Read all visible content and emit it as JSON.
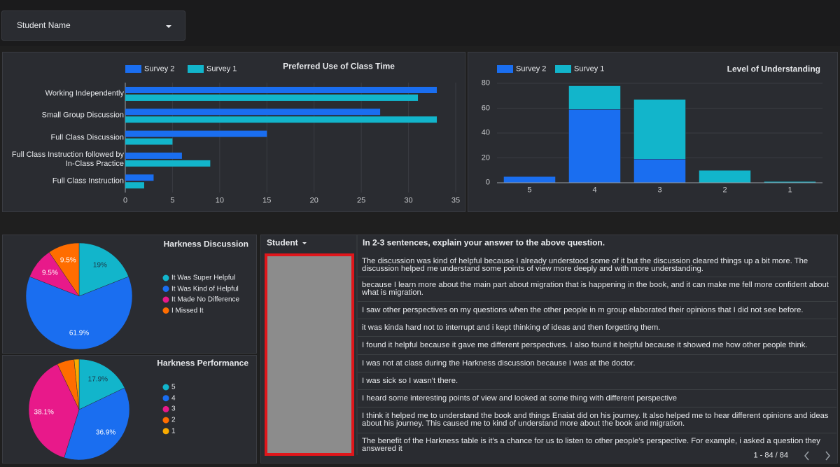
{
  "filter": {
    "label": "Student Name"
  },
  "class_time": {
    "type": "bar",
    "orientation": "horizontal",
    "title": "Preferred Use of Class Time",
    "categories": [
      "Working Independently",
      "Small Group Discussion",
      "Full Class Discussion",
      "Full Class Instruction followed by In-Class Practice",
      "Full Class Instruction"
    ],
    "series": [
      {
        "name": "Survey 2",
        "color": "#1a6ef0",
        "values": [
          33,
          27,
          15,
          6,
          3
        ]
      },
      {
        "name": "Survey 1",
        "color": "#12b5cb",
        "values": [
          31,
          33,
          5,
          9,
          2
        ]
      }
    ],
    "xlim": [
      0,
      35
    ],
    "xticks": [
      0,
      5,
      10,
      15,
      20,
      25,
      30,
      35
    ],
    "grid": true
  },
  "understanding": {
    "type": "bar",
    "stacked": true,
    "title": "Level of Understanding",
    "categories": [
      "5",
      "4",
      "3",
      "2",
      "1"
    ],
    "series": [
      {
        "name": "Survey 2",
        "color": "#1a6ef0",
        "values": [
          5,
          59,
          19,
          0,
          0
        ]
      },
      {
        "name": "Survey 1",
        "color": "#12b5cb",
        "values": [
          0,
          19,
          48,
          10,
          1
        ]
      }
    ],
    "ylim": [
      0,
      80
    ],
    "yticks": [
      0,
      20,
      40,
      60,
      80
    ],
    "grid": true
  },
  "harkness_discussion": {
    "type": "pie",
    "title": "Harkness Discussion",
    "categories": [
      "It Was Super Helpful",
      "It Was Kind of Helpful",
      "It Made No Difference",
      "I Missed It"
    ],
    "values": [
      19,
      61.9,
      9.5,
      9.5
    ],
    "value_labels": [
      "19%",
      "61.9%",
      "9.5%",
      "9.5%"
    ],
    "colors": [
      "#12b5cb",
      "#1a6ef0",
      "#e8198a",
      "#ff6d00"
    ]
  },
  "harkness_performance": {
    "type": "pie",
    "title": "Harkness Performance",
    "categories": [
      "5",
      "4",
      "3",
      "2",
      "1"
    ],
    "values": [
      17.9,
      36.9,
      38.1,
      5.5,
      1.6
    ],
    "value_labels": [
      "17.9%",
      "36.9%",
      "38.1%",
      null,
      null
    ],
    "colors": [
      "#12b5cb",
      "#1a6ef0",
      "#e8198a",
      "#ff6d00",
      "#f9ab00"
    ]
  },
  "table": {
    "columns": [
      "Student",
      "In 2-3 sentences, explain your answer to the above question."
    ],
    "rows": [
      "The discussion was kind of helpful because I already understood some of it but the discussion cleared things up a bit more. The discussion helped me understand some points of view more deeply and with more understanding.",
      "because I learn more about the main part about migration that is happening in the book, and it can make me fell more confident about what is migration.",
      "I saw other perspectives on my questions when the other people in m group elaborated their opinions that I did not see before.",
      "it was kinda hard not to interrupt and i kept thinking of ideas and then forgetting them.",
      "I found it helpful because it gave me different perspectives. I also found it helpful because it showed me how other people think.",
      "I was not at class during the Harkness discussion because I was at the doctor.",
      "I was sick so I wasn't there.",
      "I heard some interesting points of view and looked at some thing with different perspective",
      "I think it helped me to understand the book and things Enaiat did on his journey. It also helped me to hear different opinions and ideas about his journey. This caused me to kind of understand more about the book and migration.",
      "The benefit of the Harkness table is it's a chance for us to listen to other people's perspective. For example, i asked a question they answered it"
    ],
    "pagination": "1 - 84 / 84"
  }
}
